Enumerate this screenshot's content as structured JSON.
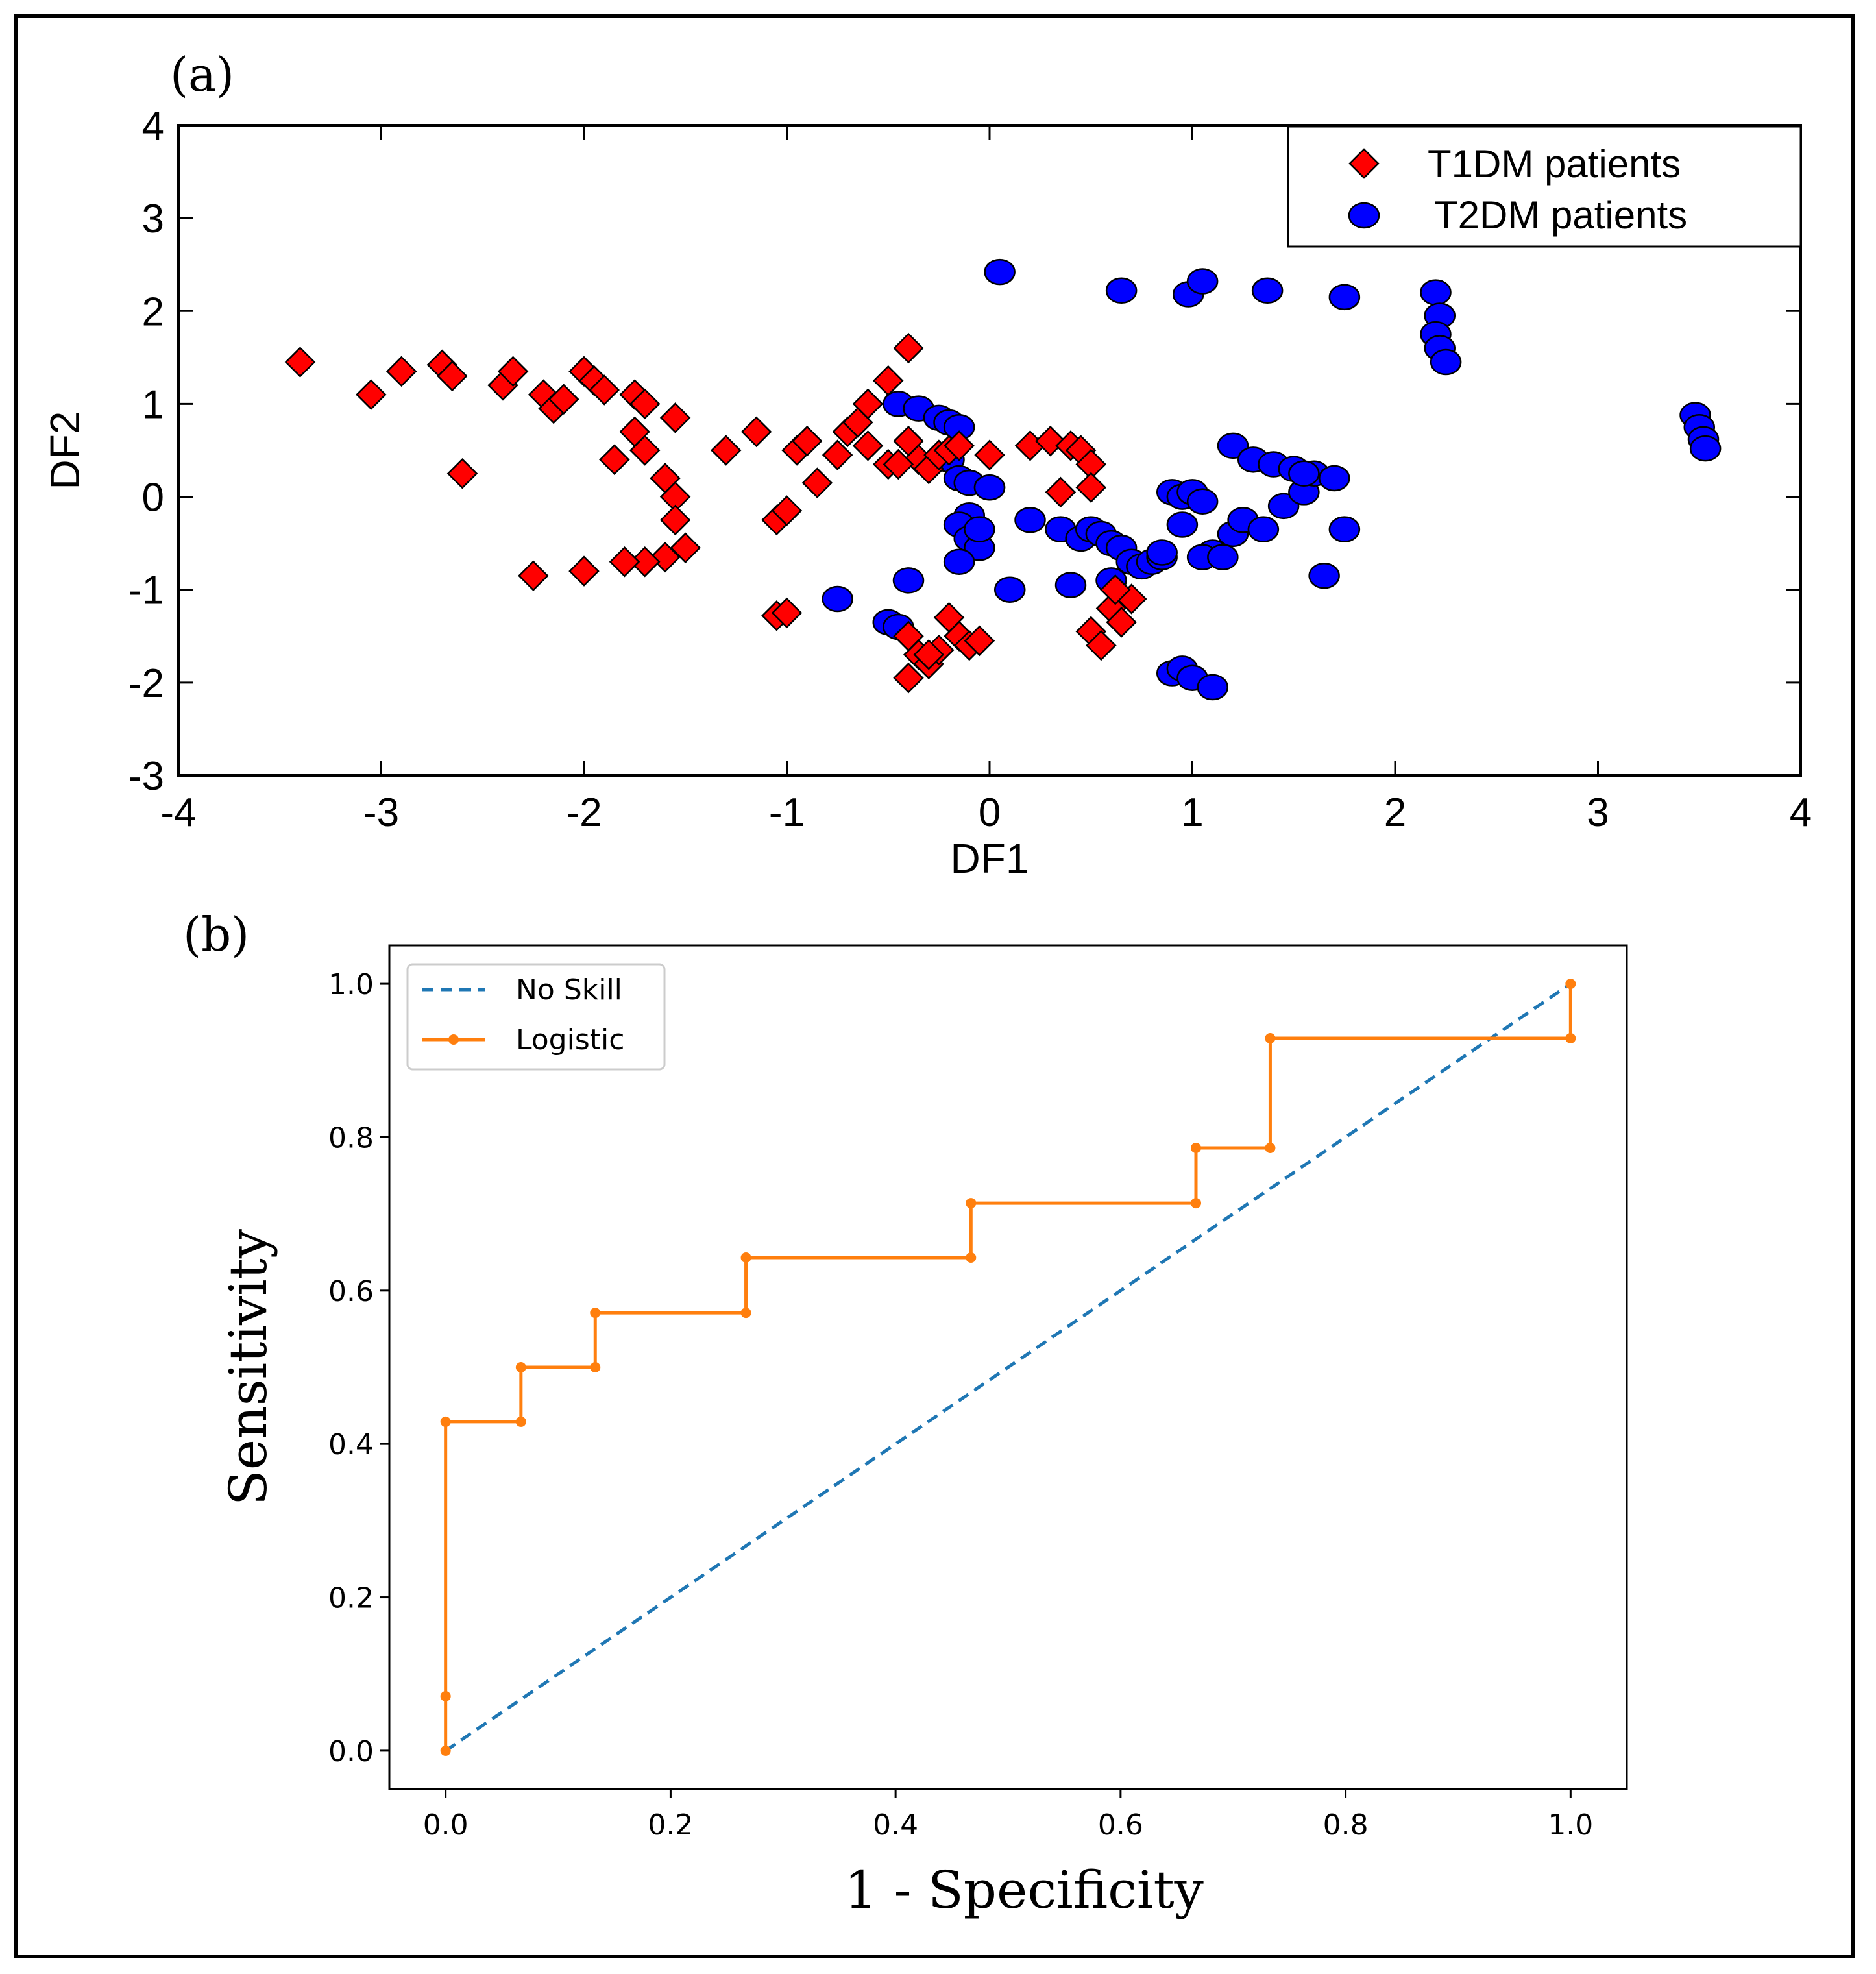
{
  "chart_data": [
    {
      "panel_label": "(a)",
      "type": "scatter",
      "xlabel": "DF1",
      "ylabel": "DF2",
      "xlim": [
        -4,
        4
      ],
      "ylim": [
        -3,
        4
      ],
      "xticks": [
        -4,
        -3,
        -2,
        -1,
        0,
        1,
        2,
        3,
        4
      ],
      "yticks": [
        -3,
        -2,
        -1,
        0,
        1,
        2,
        3,
        4
      ],
      "legend": "top-right",
      "series": [
        {
          "name": "T1DM patients",
          "marker": "diamond",
          "color": "#ff0000",
          "points": [
            [
              -3.4,
              1.45
            ],
            [
              -3.05,
              1.1
            ],
            [
              -2.9,
              1.35
            ],
            [
              -2.7,
              1.42
            ],
            [
              -2.65,
              1.3
            ],
            [
              -2.6,
              0.25
            ],
            [
              -2.4,
              1.2
            ],
            [
              -2.35,
              1.35
            ],
            [
              -2.2,
              1.1
            ],
            [
              -2.15,
              0.95
            ],
            [
              -2.1,
              1.05
            ],
            [
              -2.0,
              1.35
            ],
            [
              -1.95,
              1.25
            ],
            [
              -1.9,
              1.15
            ],
            [
              -1.85,
              0.4
            ],
            [
              -1.75,
              1.1
            ],
            [
              -1.7,
              1.0
            ],
            [
              -1.75,
              0.7
            ],
            [
              -1.7,
              0.5
            ],
            [
              -1.6,
              0.2
            ],
            [
              -1.55,
              0.0
            ],
            [
              -1.55,
              -0.25
            ],
            [
              -1.55,
              0.85
            ],
            [
              -1.5,
              -0.55
            ],
            [
              -1.6,
              -0.65
            ],
            [
              -1.7,
              -0.7
            ],
            [
              -1.8,
              -0.7
            ],
            [
              -2.0,
              -0.8
            ],
            [
              -2.25,
              -0.85
            ],
            [
              -1.3,
              0.5
            ],
            [
              -1.15,
              0.7
            ],
            [
              -1.05,
              -0.25
            ],
            [
              -1.0,
              -0.15
            ],
            [
              -1.05,
              -1.28
            ],
            [
              -1.0,
              -1.25
            ],
            [
              -0.95,
              0.5
            ],
            [
              -0.9,
              0.6
            ],
            [
              -0.85,
              0.15
            ],
            [
              -0.75,
              0.45
            ],
            [
              -0.7,
              0.7
            ],
            [
              -0.65,
              0.8
            ],
            [
              -0.6,
              1.0
            ],
            [
              -0.5,
              1.25
            ],
            [
              -0.4,
              1.6
            ],
            [
              -0.6,
              0.55
            ],
            [
              -0.5,
              0.35
            ],
            [
              -0.4,
              0.6
            ],
            [
              -0.35,
              0.4
            ],
            [
              -0.3,
              0.3
            ],
            [
              -0.25,
              0.45
            ],
            [
              -0.2,
              0.5
            ],
            [
              -0.15,
              0.55
            ],
            [
              0.0,
              0.45
            ],
            [
              0.2,
              0.55
            ],
            [
              0.3,
              0.6
            ],
            [
              0.4,
              0.55
            ],
            [
              0.45,
              0.5
            ],
            [
              0.5,
              0.35
            ],
            [
              0.5,
              0.1
            ],
            [
              0.35,
              0.05
            ],
            [
              -0.4,
              -1.5
            ],
            [
              -0.35,
              -1.7
            ],
            [
              -0.3,
              -1.8
            ],
            [
              -0.25,
              -1.65
            ],
            [
              -0.2,
              -1.3
            ],
            [
              -0.15,
              -1.5
            ],
            [
              -0.1,
              -1.6
            ],
            [
              -0.05,
              -1.55
            ],
            [
              -0.4,
              -1.95
            ],
            [
              0.5,
              -1.45
            ],
            [
              0.55,
              -1.6
            ],
            [
              0.6,
              -1.2
            ],
            [
              0.65,
              -1.35
            ],
            [
              0.7,
              -1.1
            ],
            [
              0.62,
              -1.0
            ],
            [
              -0.45,
              0.35
            ],
            [
              -0.3,
              -1.7
            ]
          ]
        },
        {
          "name": "T2DM patients",
          "marker": "circle",
          "color": "#0000ff",
          "points": [
            [
              0.05,
              2.42
            ],
            [
              0.65,
              2.22
            ],
            [
              0.98,
              2.18
            ],
            [
              1.05,
              2.32
            ],
            [
              1.37,
              2.22
            ],
            [
              1.75,
              2.15
            ],
            [
              2.2,
              2.2
            ],
            [
              2.22,
              1.95
            ],
            [
              2.2,
              1.75
            ],
            [
              2.22,
              1.6
            ],
            [
              2.25,
              1.45
            ],
            [
              3.48,
              0.88
            ],
            [
              3.5,
              0.75
            ],
            [
              3.52,
              0.62
            ],
            [
              3.53,
              0.52
            ],
            [
              -0.45,
              1.0
            ],
            [
              -0.35,
              0.95
            ],
            [
              -0.25,
              0.85
            ],
            [
              -0.2,
              0.8
            ],
            [
              -0.15,
              0.75
            ],
            [
              -0.2,
              0.4
            ],
            [
              -0.15,
              0.2
            ],
            [
              -0.1,
              0.15
            ],
            [
              0.0,
              0.1
            ],
            [
              -0.1,
              -0.2
            ],
            [
              -0.15,
              -0.3
            ],
            [
              -0.1,
              -0.45
            ],
            [
              -0.05,
              -0.55
            ],
            [
              -0.15,
              -0.7
            ],
            [
              0.1,
              -1.0
            ],
            [
              0.2,
              -0.25
            ],
            [
              0.35,
              -0.35
            ],
            [
              0.45,
              -0.45
            ],
            [
              0.5,
              -0.35
            ],
            [
              0.55,
              -0.4
            ],
            [
              0.6,
              -0.5
            ],
            [
              0.65,
              -0.55
            ],
            [
              0.7,
              -0.7
            ],
            [
              0.75,
              -0.75
            ],
            [
              0.8,
              -0.7
            ],
            [
              0.85,
              -0.65
            ],
            [
              0.6,
              -0.9
            ],
            [
              0.4,
              -0.95
            ],
            [
              0.9,
              0.05
            ],
            [
              0.95,
              0.0
            ],
            [
              1.0,
              0.05
            ],
            [
              1.05,
              -0.05
            ],
            [
              0.95,
              -0.3
            ],
            [
              1.1,
              -0.6
            ],
            [
              1.05,
              -0.65
            ],
            [
              1.15,
              -0.65
            ],
            [
              1.2,
              -0.4
            ],
            [
              1.25,
              -0.25
            ],
            [
              1.35,
              -0.35
            ],
            [
              1.45,
              -0.1
            ],
            [
              1.55,
              0.05
            ],
            [
              1.6,
              0.25
            ],
            [
              1.7,
              0.2
            ],
            [
              1.75,
              -0.35
            ],
            [
              1.65,
              -0.85
            ],
            [
              1.2,
              0.55
            ],
            [
              1.3,
              0.4
            ],
            [
              1.4,
              0.35
            ],
            [
              1.5,
              0.3
            ],
            [
              1.55,
              0.25
            ],
            [
              0.9,
              -1.9
            ],
            [
              0.95,
              -1.85
            ],
            [
              1.0,
              -1.95
            ],
            [
              1.1,
              -2.05
            ],
            [
              -0.75,
              -1.1
            ],
            [
              -0.5,
              -1.35
            ],
            [
              -0.45,
              -1.4
            ],
            [
              -0.4,
              -0.9
            ],
            [
              -0.05,
              -0.35
            ],
            [
              0.0,
              0.1
            ],
            [
              0.85,
              -0.6
            ]
          ]
        }
      ]
    },
    {
      "panel_label": "(b)",
      "type": "line",
      "xlabel": "1 - Specificity",
      "ylabel": "Sensitivity",
      "xlim": [
        -0.05,
        1.05
      ],
      "ylim": [
        -0.05,
        1.05
      ],
      "xticks": [
        0.0,
        0.2,
        0.4,
        0.6,
        0.8,
        1.0
      ],
      "yticks": [
        0.0,
        0.2,
        0.4,
        0.6,
        0.8,
        1.0
      ],
      "tick_labels": [
        "0.0",
        "0.2",
        "0.4",
        "0.6",
        "0.8",
        "1.0"
      ],
      "legend": "top-left",
      "series": [
        {
          "name": "No Skill",
          "style": "dashed",
          "color": "#1f77b4",
          "x": [
            0,
            1
          ],
          "y": [
            0,
            1
          ]
        },
        {
          "name": "Logistic",
          "style": "solid-marker",
          "color": "#ff7f0e",
          "x": [
            0,
            0,
            0,
            0.067,
            0.067,
            0.133,
            0.133,
            0.267,
            0.267,
            0.467,
            0.467,
            0.667,
            0.667,
            0.733,
            0.733,
            1.0,
            1.0
          ],
          "y": [
            0,
            0.071,
            0.429,
            0.429,
            0.5,
            0.5,
            0.571,
            0.571,
            0.643,
            0.643,
            0.714,
            0.714,
            0.786,
            0.786,
            0.929,
            0.929,
            1.0
          ]
        }
      ]
    }
  ]
}
